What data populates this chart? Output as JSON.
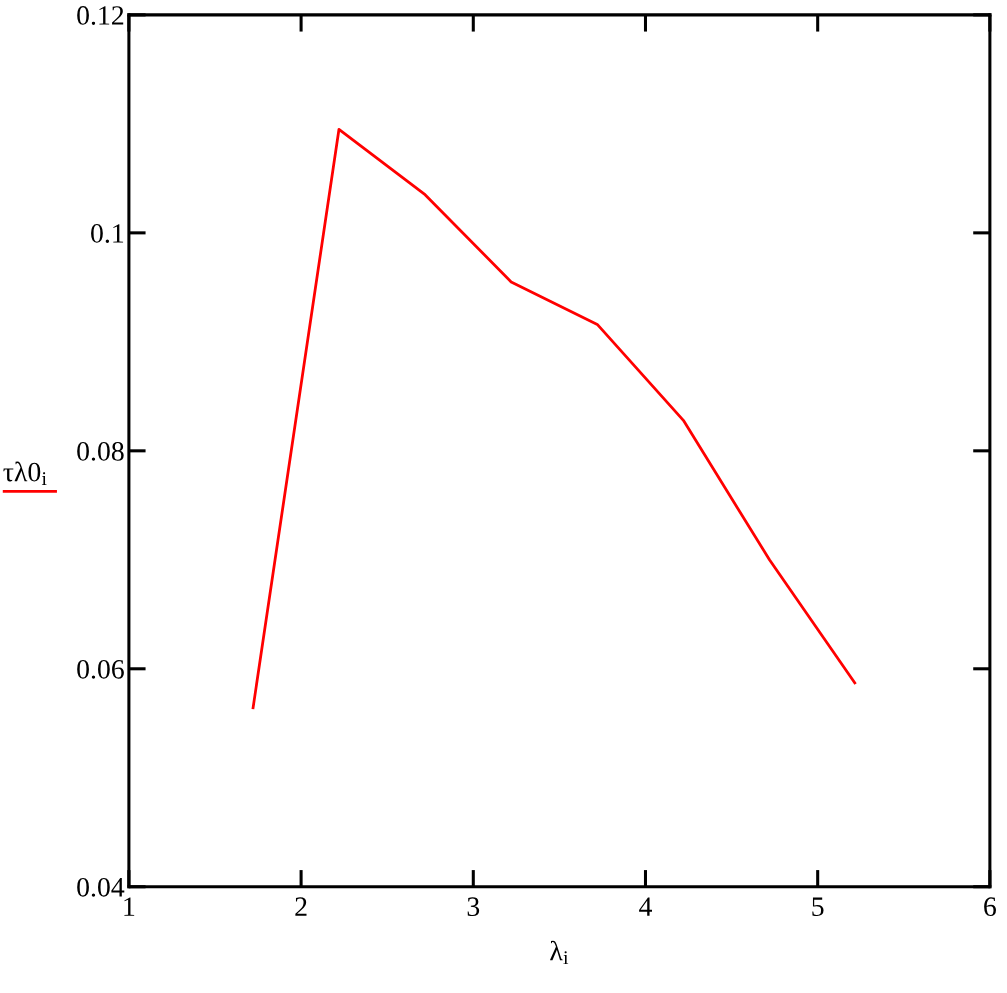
{
  "chart_data": {
    "type": "line",
    "xlabel": "λ$_{i}$",
    "x": [
      1.72,
      2.22,
      2.72,
      3.22,
      3.72,
      4.22,
      4.72,
      5.22
    ],
    "series": [
      {
        "name": "τλ0$_{i}$",
        "color": "#ff0000",
        "values": [
          0.0563,
          0.1095,
          0.1035,
          0.0955,
          0.0916,
          0.0828,
          0.07,
          0.0586
        ]
      }
    ],
    "xlim": [
      1,
      6
    ],
    "ylim": [
      0.04,
      0.12
    ],
    "xticks": [
      1,
      2,
      3,
      4,
      5,
      6
    ],
    "yticks": [
      0.04,
      0.06,
      0.08,
      0.1,
      0.12
    ],
    "legend": "left"
  }
}
